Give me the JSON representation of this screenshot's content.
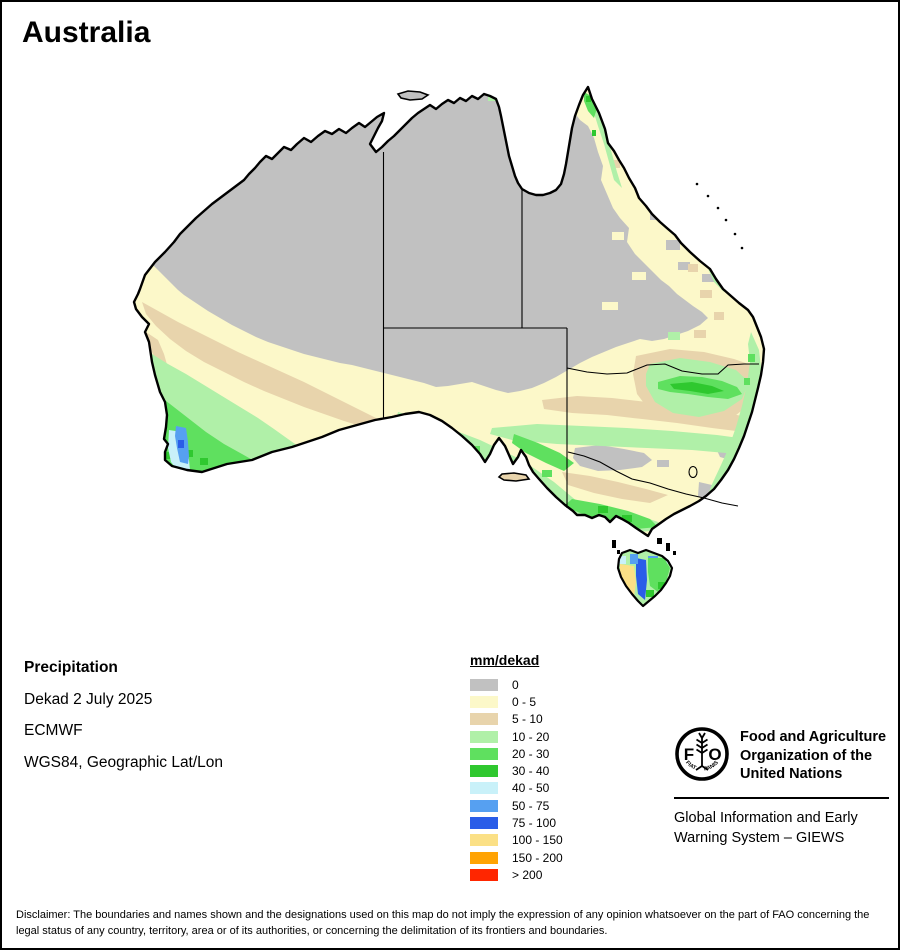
{
  "title": "Australia",
  "info": {
    "heading": "Precipitation",
    "lines": [
      "Dekad 2 July 2025",
      "ECMWF",
      "WGS84, Geographic Lat/Lon"
    ]
  },
  "legend": {
    "title": "mm/dekad",
    "items": [
      {
        "label": "0",
        "color": "#c1c1c1"
      },
      {
        "label": "0 - 5",
        "color": "#fcf8c9"
      },
      {
        "label": "5 - 10",
        "color": "#e8d4ac"
      },
      {
        "label": "10 - 20",
        "color": "#b0f0a8"
      },
      {
        "label": "20 - 30",
        "color": "#5fe05f"
      },
      {
        "label": "30 - 40",
        "color": "#2fc82f"
      },
      {
        "label": "40 - 50",
        "color": "#c9f1f9"
      },
      {
        "label": "50 - 75",
        "color": "#56a0f1"
      },
      {
        "label": "75 - 100",
        "color": "#2a5de8"
      },
      {
        "label": "100 - 150",
        "color": "#fbe086"
      },
      {
        "label": "150 - 200",
        "color": "#ffa303"
      },
      {
        "label": "> 200",
        "color": "#ff2600"
      }
    ]
  },
  "branding": {
    "logo_letters": [
      "F",
      "O"
    ],
    "logo_motto": "FIAT      PANIS",
    "org_name_lines": [
      "Food and Agriculture",
      "Organization of the",
      "United Nations"
    ],
    "subtitle_lines": [
      "Global Information and Early",
      "Warning System – GIEWS"
    ]
  },
  "disclaimer": "Disclaimer: The boundaries and names shown and the designations used on this map do not imply the expression of any opinion whatsoever on the part of FAO concerning the legal status of any country, territory, area or of its authorities, or concerning the delimitation of its frontiers and boundaries."
}
